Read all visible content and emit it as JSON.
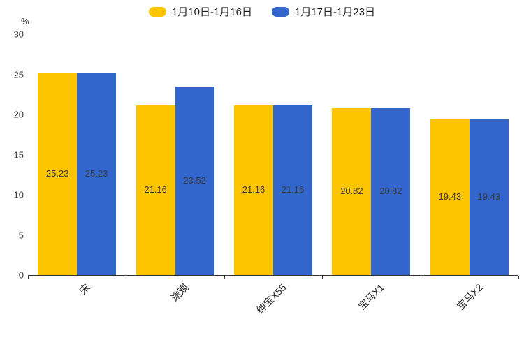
{
  "chart_data": {
    "type": "bar",
    "title": "",
    "unit_label": "%",
    "categories": [
      "宋",
      "途观",
      "绅宝X55",
      "宝马X1",
      "宝马X2"
    ],
    "series": [
      {
        "name": "1月10日-1月16日",
        "color": "#FDC500",
        "values": [
          25.23,
          21.16,
          21.16,
          20.82,
          19.43
        ]
      },
      {
        "name": "1月17日-1月23日",
        "color": "#3366CC",
        "values": [
          25.23,
          23.52,
          21.16,
          20.82,
          19.43
        ]
      }
    ],
    "ylim": [
      0,
      30
    ],
    "yticks": [
      0,
      5,
      10,
      15,
      20,
      25,
      30
    ],
    "grid": false,
    "legend_position": "top",
    "value_labels": "inside-center",
    "value_label_texts": [
      [
        "25.23",
        "21.16",
        "21.16",
        "20.82",
        "19.43"
      ],
      [
        "25.23",
        "23.52",
        "21.16",
        "20.82",
        "19.43"
      ]
    ],
    "ytick_labels": [
      "0",
      "5",
      "10",
      "15",
      "20",
      "25",
      "30"
    ]
  }
}
